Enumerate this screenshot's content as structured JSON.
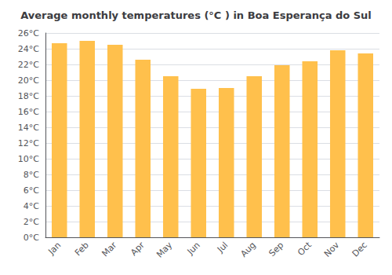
{
  "chart_data": {
    "type": "bar",
    "title": "Average monthly temperatures (°C ) in Boa Esperança do Sul",
    "categories": [
      "Jan",
      "Feb",
      "Mar",
      "Apr",
      "May",
      "Jun",
      "Jul",
      "Aug",
      "Sep",
      "Oct",
      "Nov",
      "Dec"
    ],
    "values": [
      24.7,
      25.0,
      24.5,
      22.6,
      20.5,
      18.9,
      19.0,
      20.5,
      21.9,
      22.4,
      23.8,
      23.4
    ],
    "color": "#FFC04C",
    "ylim": [
      0,
      26
    ],
    "yticks": [
      {
        "value": 0,
        "label": "0°C"
      },
      {
        "value": 2,
        "label": "2°C"
      },
      {
        "value": 4,
        "label": "4°C"
      },
      {
        "value": 6,
        "label": "6°C"
      },
      {
        "value": 8,
        "label": "8°C"
      },
      {
        "value": 10,
        "label": "10°C"
      },
      {
        "value": 12,
        "label": "12°C"
      },
      {
        "value": 14,
        "label": "14°C"
      },
      {
        "value": 16,
        "label": "16°C"
      },
      {
        "value": 18,
        "label": "18°C"
      },
      {
        "value": 20,
        "label": "20°C"
      },
      {
        "value": 22,
        "label": "22°C"
      },
      {
        "value": 24,
        "label": "24°C"
      },
      {
        "value": 26,
        "label": "26°C"
      }
    ],
    "grid": true
  }
}
